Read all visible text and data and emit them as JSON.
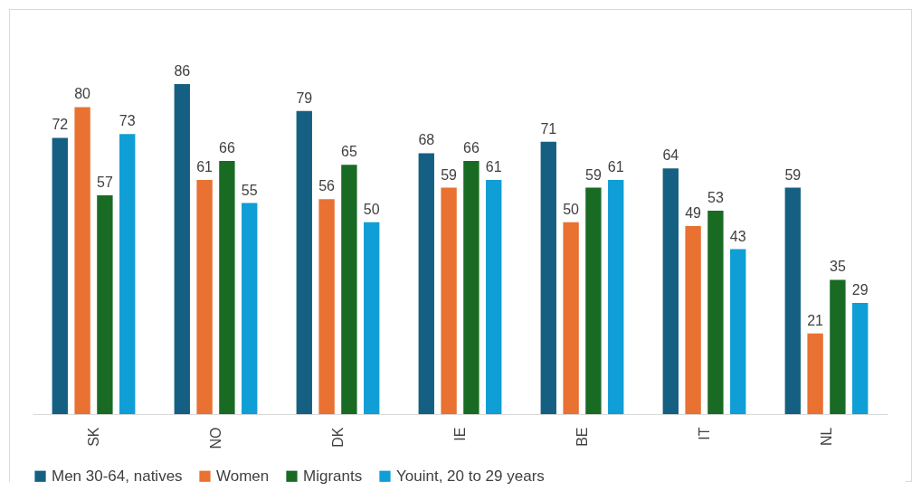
{
  "chart_data": {
    "type": "bar",
    "categories": [
      "SK",
      "NO",
      "DK",
      "IE",
      "BE",
      "IT",
      "NL"
    ],
    "series": [
      {
        "name": "Men 30-64, natives",
        "color": "#156082",
        "values": [
          72,
          86,
          79,
          68,
          71,
          64,
          59
        ]
      },
      {
        "name": "Women",
        "color": "#e97132",
        "values": [
          80,
          61,
          56,
          59,
          50,
          49,
          21
        ]
      },
      {
        "name": "Migrants",
        "color": "#196b24",
        "values": [
          57,
          66,
          65,
          66,
          59,
          53,
          35
        ]
      },
      {
        "name": "Youint, 20 to 29 years",
        "color": "#0f9ed5",
        "values": [
          73,
          55,
          50,
          61,
          61,
          43,
          29
        ]
      }
    ],
    "data_labels": true,
    "legend": "bottom",
    "grid": false
  }
}
